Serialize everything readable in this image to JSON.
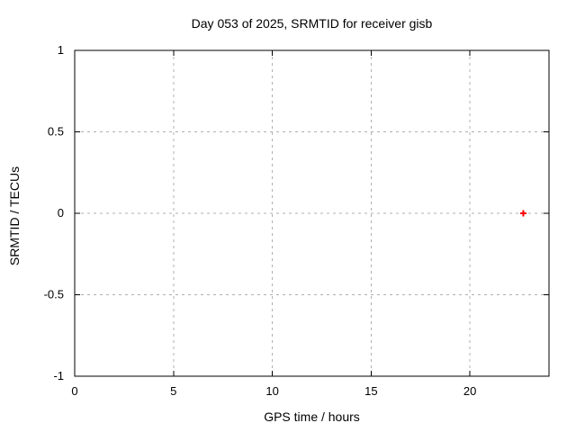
{
  "chart_data": {
    "type": "scatter",
    "title": "Day 053 of 2025, SRMTID for receiver gisb",
    "xlabel": "GPS time / hours",
    "ylabel": "SRMTID / TECUs",
    "xlim": [
      0,
      24
    ],
    "ylim": [
      -1,
      1
    ],
    "xticks": [
      0,
      5,
      10,
      15,
      20
    ],
    "xtick_labels": [
      "0",
      "5",
      "10",
      "15",
      "20"
    ],
    "yticks": [
      -1,
      -0.5,
      0,
      0.5,
      1
    ],
    "ytick_labels": [
      "-1",
      "-0.5",
      "0",
      "0.5",
      "1"
    ],
    "grid": true,
    "grid_style": "dashed",
    "legend": "none",
    "series": [
      {
        "name": "SRMTID",
        "marker": "plus",
        "color": "#ff0000",
        "points": [
          {
            "x": 22.7,
            "y": 0.0
          }
        ]
      }
    ],
    "colors": {
      "background": "#ffffff",
      "axis": "#000000",
      "grid": "#b0b0b0",
      "text": "#000000",
      "marker": "#ff0000"
    }
  }
}
